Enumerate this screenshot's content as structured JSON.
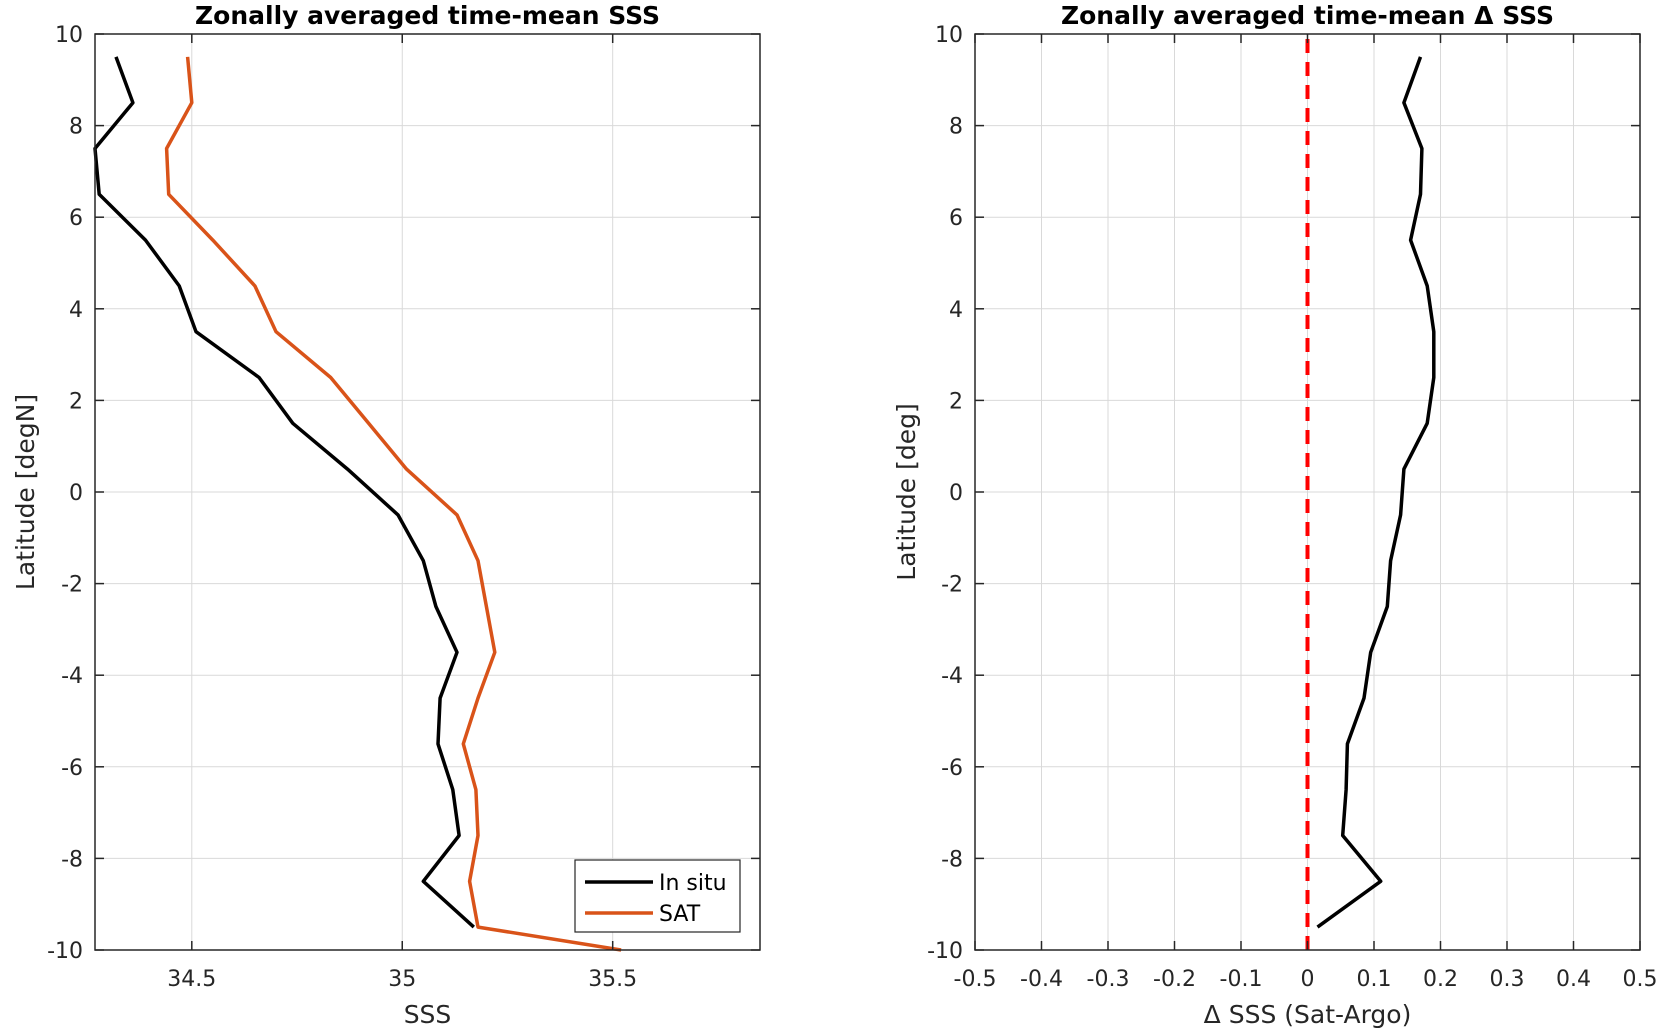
{
  "colors": {
    "insitu": "#000000",
    "sat": "#d95319",
    "zero_line": "#ff0000",
    "grid": "#d9d9d9",
    "axis": "#262626"
  },
  "chart_data": [
    {
      "type": "line",
      "title": "Zonally averaged time-mean SSS",
      "xlabel": "SSS",
      "ylabel": "Latitude [degN]",
      "xlim": [
        34.27,
        35.85
      ],
      "ylim": [
        -10,
        10
      ],
      "xticks": [
        34.5,
        35,
        35.5
      ],
      "yticks": [
        -10,
        -8,
        -6,
        -4,
        -2,
        0,
        2,
        4,
        6,
        8,
        10
      ],
      "xtick_labels": [
        "34.5",
        "35",
        "35.5"
      ],
      "ytick_labels": [
        "-10",
        "-8",
        "-6",
        "-4",
        "-2",
        "0",
        "2",
        "4",
        "6",
        "8",
        "10"
      ],
      "grid": true,
      "legend_position": "bottom-right",
      "series": [
        {
          "name": "In situ",
          "color_key": "insitu",
          "x": [
            34.32,
            34.36,
            34.27,
            34.28,
            34.39,
            34.47,
            34.51,
            34.66,
            34.74,
            34.87,
            34.99,
            35.05,
            35.08,
            35.13,
            35.09,
            35.085,
            35.12,
            35.135,
            35.05,
            35.17
          ],
          "y": [
            9.5,
            8.5,
            7.5,
            6.5,
            5.5,
            4.5,
            3.5,
            2.5,
            1.5,
            0.5,
            -0.5,
            -1.5,
            -2.5,
            -3.5,
            -4.5,
            -5.5,
            -6.5,
            -7.5,
            -8.5,
            -9.5
          ]
        },
        {
          "name": "SAT",
          "color_key": "sat",
          "x": [
            34.49,
            34.5,
            34.44,
            34.445,
            34.55,
            34.65,
            34.7,
            34.83,
            34.92,
            35.01,
            35.13,
            35.18,
            35.2,
            35.22,
            35.18,
            35.145,
            35.175,
            35.18,
            35.16,
            35.18,
            35.52
          ],
          "y": [
            9.5,
            8.5,
            7.5,
            6.5,
            5.5,
            4.5,
            3.5,
            2.5,
            1.5,
            0.5,
            -0.5,
            -1.5,
            -2.5,
            -3.5,
            -4.5,
            -5.5,
            -6.5,
            -7.5,
            -8.5,
            -9.5,
            -10
          ]
        }
      ]
    },
    {
      "type": "line",
      "title": "Zonally averaged time-mean Δ SSS",
      "xlabel": "Δ SSS (Sat-Argo)",
      "ylabel": "Latitude [deg]",
      "xlim": [
        -0.5,
        0.5
      ],
      "ylim": [
        -10,
        10
      ],
      "xticks": [
        -0.5,
        -0.4,
        -0.3,
        -0.2,
        -0.1,
        0,
        0.1,
        0.2,
        0.3,
        0.4,
        0.5
      ],
      "yticks": [
        -10,
        -8,
        -6,
        -4,
        -2,
        0,
        2,
        4,
        6,
        8,
        10
      ],
      "xtick_labels": [
        "-0.5",
        "-0.4",
        "-0.3",
        "-0.2",
        "-0.1",
        "0",
        "0.1",
        "0.2",
        "0.3",
        "0.4",
        "0.5"
      ],
      "ytick_labels": [
        "-10",
        "-8",
        "-6",
        "-4",
        "-2",
        "0",
        "2",
        "4",
        "6",
        "8",
        "10"
      ],
      "grid": true,
      "reference_line": {
        "x": 0,
        "style": "dashed",
        "color_key": "zero_line"
      },
      "series": [
        {
          "color_key": "insitu",
          "x": [
            0.17,
            0.145,
            0.172,
            0.17,
            0.155,
            0.18,
            0.19,
            0.19,
            0.18,
            0.145,
            0.14,
            0.125,
            0.12,
            0.095,
            0.085,
            0.06,
            0.058,
            0.053,
            0.11,
            0.015
          ],
          "y": [
            9.5,
            8.5,
            7.5,
            6.5,
            5.5,
            4.5,
            3.5,
            2.5,
            1.5,
            0.5,
            -0.5,
            -1.5,
            -2.5,
            -3.5,
            -4.5,
            -5.5,
            -6.5,
            -7.5,
            -8.5,
            -9.5
          ]
        }
      ]
    }
  ]
}
